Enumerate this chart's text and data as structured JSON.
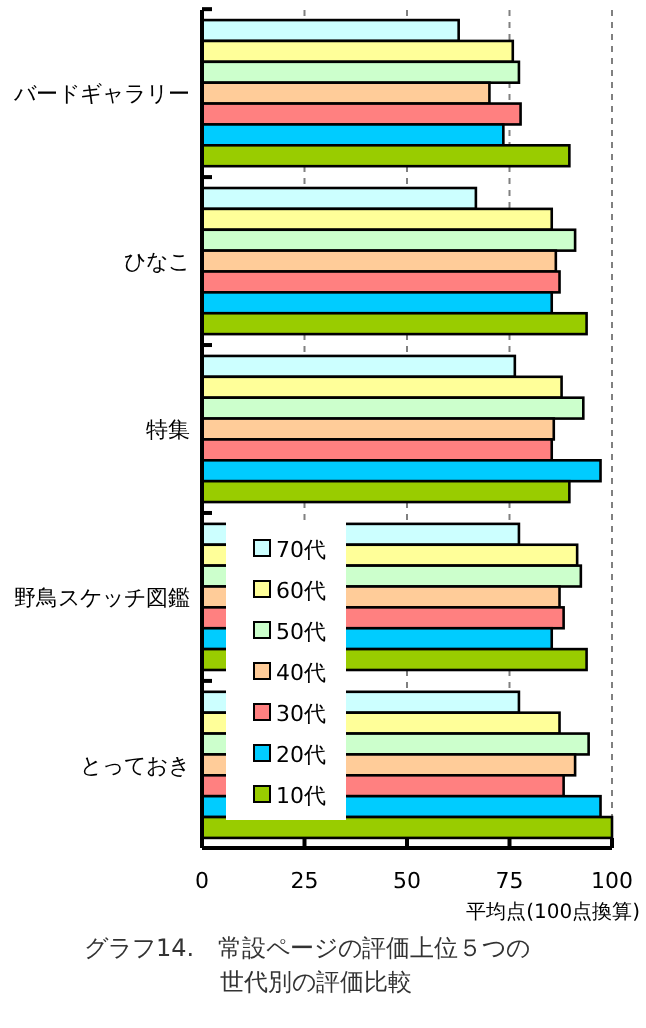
{
  "chart_data": {
    "type": "bar",
    "orientation": "horizontal",
    "title": "グラフ14.　常設ページの評価上位５つの世代別の評価比較",
    "xlabel": "平均点(100点換算)",
    "categories": [
      "バードギャラリー",
      "ひなこ",
      "特集",
      "野鳥スケッチ図鑑",
      "とっておき"
    ],
    "series": [
      {
        "name": "70代",
        "color": "#ccffff",
        "values": [
          62.6,
          66.8,
          76.3,
          77.3,
          77.3
        ]
      },
      {
        "name": "60代",
        "color": "#ffff99",
        "values": [
          75.8,
          85.3,
          87.7,
          91.5,
          87.2
        ]
      },
      {
        "name": "50代",
        "color": "#ccffcc",
        "values": [
          77.3,
          91,
          93,
          92.4,
          94.3
        ]
      },
      {
        "name": "40代",
        "color": "#ffcc99",
        "values": [
          70.1,
          86.3,
          85.8,
          87.2,
          91
        ]
      },
      {
        "name": "30代",
        "color": "#ff8080",
        "values": [
          77.7,
          87.2,
          85.3,
          88.2,
          88.2
        ]
      },
      {
        "name": "20代",
        "color": "#00ccff",
        "values": [
          73.5,
          85.3,
          97.2,
          85.3,
          97.2
        ]
      },
      {
        "name": "10代",
        "color": "#99cc00",
        "values": [
          89.6,
          93.8,
          89.6,
          93.8,
          100
        ]
      }
    ],
    "xlim": [
      0,
      100
    ],
    "xticks": [
      0,
      25,
      50,
      75,
      100
    ],
    "grid": "x",
    "legend": "bottom left"
  }
}
